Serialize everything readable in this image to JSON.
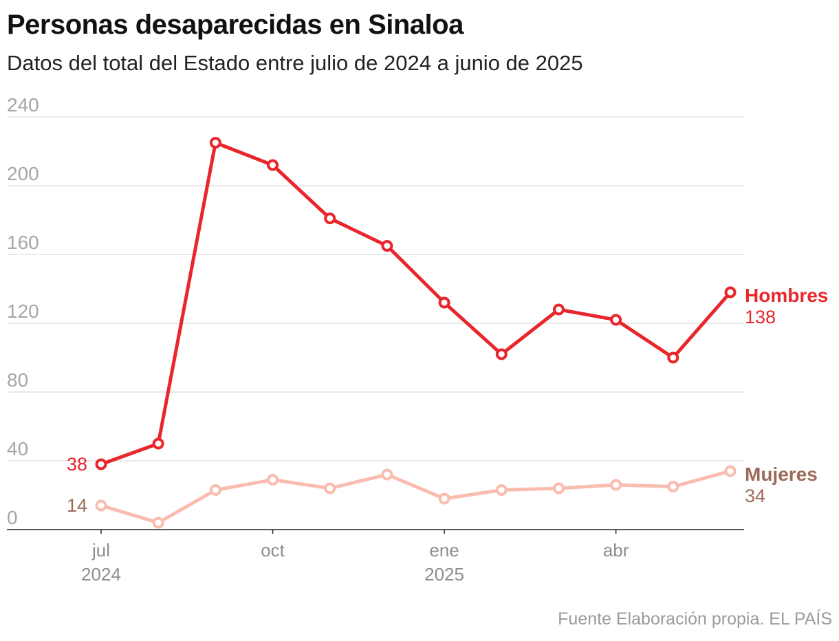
{
  "title": "Personas desaparecidas en Sinaloa",
  "subtitle": "Datos del total del Estado entre julio de 2024 a junio de 2025",
  "source": "Fuente Elaboración propia. EL PAÍS",
  "chart_data": {
    "type": "line",
    "title": "Personas desaparecidas en Sinaloa",
    "subtitle": "Datos del total del Estado entre julio de 2024 a junio de 2025",
    "xlabel": "",
    "ylabel": "",
    "x": [
      "2024-07",
      "2024-08",
      "2024-09",
      "2024-10",
      "2024-11",
      "2024-12",
      "2025-01",
      "2025-02",
      "2025-03",
      "2025-04",
      "2025-05",
      "2025-06"
    ],
    "x_tick_labels": [
      {
        "index": 0,
        "month": "jul",
        "year": "2024"
      },
      {
        "index": 3,
        "month": "oct",
        "year": ""
      },
      {
        "index": 6,
        "month": "ene",
        "year": "2025"
      },
      {
        "index": 9,
        "month": "abr",
        "year": ""
      }
    ],
    "y_ticks": [
      "0",
      "40",
      "80",
      "120",
      "160",
      "200",
      "240"
    ],
    "ylim": [
      0,
      240
    ],
    "grid": true,
    "legend": "direct labels at line ends (right)",
    "series": [
      {
        "name": "Hombres",
        "color": "#e8262c",
        "label_color": "#e8262c",
        "values": [
          38,
          50,
          225,
          212,
          181,
          165,
          132,
          102,
          128,
          122,
          100,
          138
        ],
        "start_label": "38",
        "end_label": "138"
      },
      {
        "name": "Mujeres",
        "color": "#fbbcb0",
        "label_color": "#9c6a5b",
        "values": [
          14,
          4,
          23,
          29,
          24,
          32,
          18,
          23,
          24,
          26,
          25,
          34
        ],
        "start_label": "14",
        "end_label": "34"
      }
    ]
  }
}
